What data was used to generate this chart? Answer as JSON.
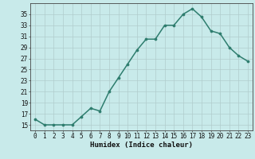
{
  "x": [
    0,
    1,
    2,
    3,
    4,
    5,
    6,
    7,
    8,
    9,
    10,
    11,
    12,
    13,
    14,
    15,
    16,
    17,
    18,
    19,
    20,
    21,
    22,
    23
  ],
  "y": [
    16,
    15,
    15,
    15,
    15,
    16.5,
    18,
    17.5,
    21,
    23.5,
    26,
    28.5,
    30.5,
    30.5,
    33,
    33,
    35,
    36,
    34.5,
    32,
    31.5,
    29,
    27.5,
    26.5
  ],
  "line_color": "#2e7d6e",
  "marker": "o",
  "marker_size": 2.2,
  "line_width": 1.1,
  "bg_color": "#c8eaea",
  "grid_color": "#b0cccc",
  "xlabel": "Humidex (Indice chaleur)",
  "xlim": [
    -0.5,
    23.5
  ],
  "ylim": [
    14,
    37
  ],
  "yticks": [
    15,
    17,
    19,
    21,
    23,
    25,
    27,
    29,
    31,
    33,
    35
  ],
  "xticks": [
    0,
    1,
    2,
    3,
    4,
    5,
    6,
    7,
    8,
    9,
    10,
    11,
    12,
    13,
    14,
    15,
    16,
    17,
    18,
    19,
    20,
    21,
    22,
    23
  ],
  "tick_fontsize": 5.5,
  "xlabel_fontsize": 6.5,
  "axis_color": "#444444"
}
